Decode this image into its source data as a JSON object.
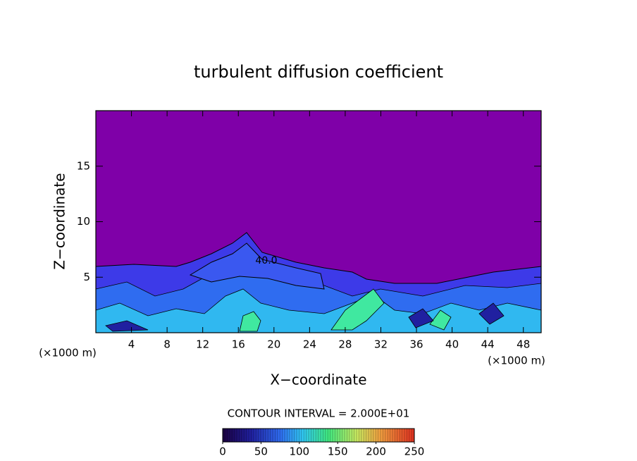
{
  "chart_data": {
    "type": "contour",
    "title": "turbulent diffusion coefficient",
    "x_label": "X−coordinate",
    "y_label": "Z−coordinate",
    "annotations": [
      "(×1000 m)",
      "(×1000 m)"
    ],
    "contour_labels": [
      "40.0"
    ],
    "contour_interval_text": "CONTOUR INTERVAL = 2.000E+01",
    "xlim": [
      0,
      50
    ],
    "xticks": [
      4,
      8,
      12,
      16,
      20,
      24,
      28,
      32,
      36,
      40,
      44,
      48
    ],
    "ylim": [
      0,
      20
    ],
    "yticks": [
      5,
      10,
      15
    ],
    "colorbar": {
      "lim": [
        0,
        250
      ],
      "ticks": [
        0,
        50,
        100,
        150,
        200,
        250
      ]
    }
  }
}
